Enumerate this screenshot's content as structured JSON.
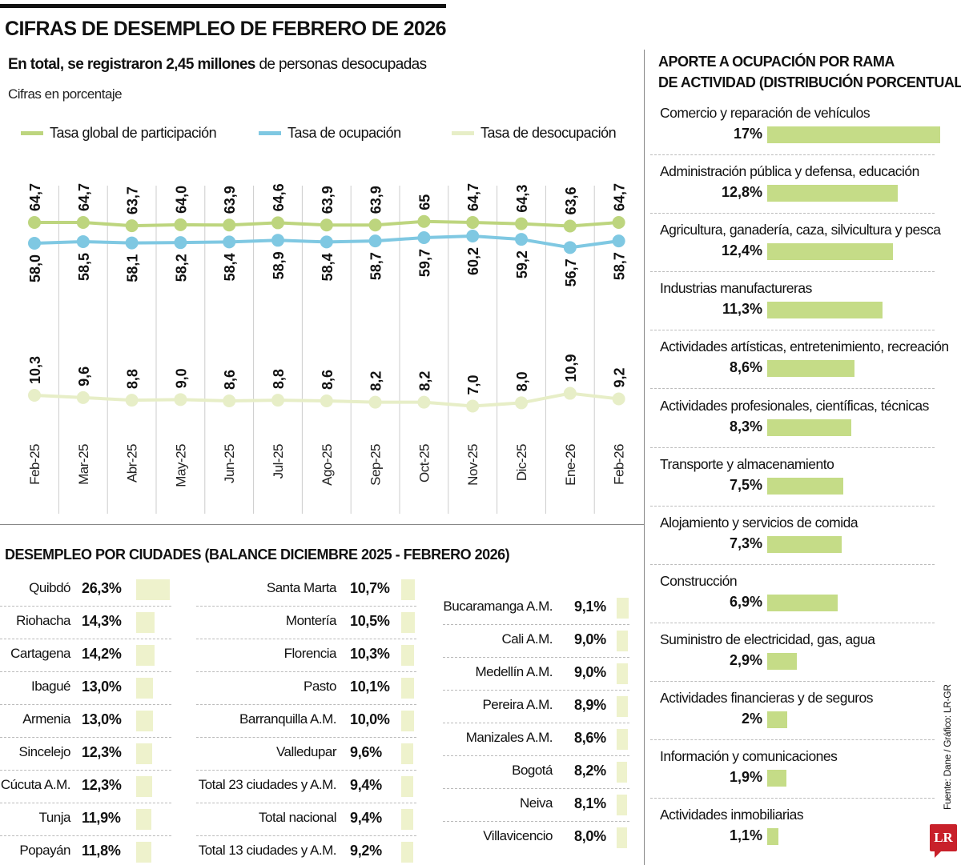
{
  "header": {
    "title": "CIFRAS DE DESEMPLEO DE FEBRERO DE 2026",
    "subtitle_bold": "En total, se registraron 2,45 millones",
    "subtitle_rest": " de personas desocupadas",
    "units": "Cifras en porcentaje"
  },
  "chart_data": {
    "type": "line",
    "categories": [
      "Feb-25",
      "Mar-25",
      "Abr-25",
      "May-25",
      "Jun-25",
      "Jul-25",
      "Ago-25",
      "Sep-25",
      "Oct-25",
      "Nov-25",
      "Dic-25",
      "Ene-26",
      "Feb-26"
    ],
    "series": [
      {
        "name": "Tasa global de participación",
        "color": "#bdd57e",
        "values": [
          64.7,
          64.7,
          63.7,
          64.0,
          63.9,
          64.6,
          63.9,
          63.9,
          65,
          64.7,
          64.3,
          63.6,
          64.7
        ],
        "labels": [
          "64,7",
          "64,7",
          "63,7",
          "64,0",
          "63,9",
          "64,6",
          "63,9",
          "63,9",
          "65",
          "64,7",
          "64,3",
          "63,6",
          "64,7"
        ]
      },
      {
        "name": "Tasa de ocupación",
        "color": "#7fc8e2",
        "values": [
          58.0,
          58.5,
          58.1,
          58.2,
          58.4,
          58.9,
          58.4,
          58.7,
          59.7,
          60.2,
          59.2,
          56.7,
          58.7
        ],
        "labels": [
          "58,0",
          "58,5",
          "58,1",
          "58,2",
          "58,4",
          "58,9",
          "58,4",
          "58,7",
          "59,7",
          "60,2",
          "59,2",
          "56,7",
          "58,7"
        ]
      },
      {
        "name": "Tasa de desocupación",
        "color": "#e7eec7",
        "values": [
          10.3,
          9.6,
          8.8,
          9.0,
          8.6,
          8.8,
          8.6,
          8.2,
          8.2,
          7.0,
          8.0,
          10.9,
          9.2
        ],
        "labels": [
          "10,3",
          "9,6",
          "8,8",
          "9,0",
          "8,6",
          "8,8",
          "8,6",
          "8,2",
          "8,2",
          "7,0",
          "8,0",
          "10,9",
          "9,2"
        ]
      }
    ],
    "legend": "top",
    "grid": "vertical separators"
  },
  "cities": {
    "title": "DESEMPLEO POR CIUDADES (BALANCE DICIEMBRE 2025 - FEBRERO 2026)",
    "bar_color": "#eef2cc",
    "columns": [
      [
        {
          "name": "Quibdó",
          "label": "26,3%",
          "value": 26.3
        },
        {
          "name": "Riohacha",
          "label": "14,3%",
          "value": 14.3
        },
        {
          "name": "Cartagena",
          "label": "14,2%",
          "value": 14.2
        },
        {
          "name": "Ibagué",
          "label": "13,0%",
          "value": 13.0
        },
        {
          "name": "Armenia",
          "label": "13,0%",
          "value": 13.0
        },
        {
          "name": "Sincelejo",
          "label": "12,3%",
          "value": 12.3
        },
        {
          "name": "Cúcuta A.M.",
          "label": "12,3%",
          "value": 12.3
        },
        {
          "name": "Tunja",
          "label": "11,9%",
          "value": 11.9
        },
        {
          "name": "Popayán",
          "label": "11,8%",
          "value": 11.8
        }
      ],
      [
        {
          "name": "Santa Marta",
          "label": "10,7%",
          "value": 10.7
        },
        {
          "name": "Montería",
          "label": "10,5%",
          "value": 10.5
        },
        {
          "name": "Florencia",
          "label": "10,3%",
          "value": 10.3
        },
        {
          "name": "Pasto",
          "label": "10,1%",
          "value": 10.1
        },
        {
          "name": "Barranquilla A.M.",
          "label": "10,0%",
          "value": 10.0
        },
        {
          "name": "Valledupar",
          "label": "9,6%",
          "value": 9.6
        },
        {
          "name": "Total 23 ciudades y A.M.",
          "label": "9,4%",
          "value": 9.4
        },
        {
          "name": "Total nacional",
          "label": "9,4%",
          "value": 9.4
        },
        {
          "name": "Total 13 ciudades y A.M.",
          "label": "9,2%",
          "value": 9.2
        }
      ],
      [
        {
          "name": "Bucaramanga A.M.",
          "label": "9,1%",
          "value": 9.1
        },
        {
          "name": "Cali A.M.",
          "label": "9,0%",
          "value": 9.0
        },
        {
          "name": "Medellín A.M.",
          "label": "9,0%",
          "value": 9.0
        },
        {
          "name": "Pereira A.M.",
          "label": "8,9%",
          "value": 8.9
        },
        {
          "name": "Manizales A.M.",
          "label": "8,6%",
          "value": 8.6
        },
        {
          "name": "Bogotá",
          "label": "8,2%",
          "value": 8.2
        },
        {
          "name": "Neiva",
          "label": "8,1%",
          "value": 8.1
        },
        {
          "name": "Villavicencio",
          "label": "8,0%",
          "value": 8.0
        }
      ]
    ]
  },
  "sectors": {
    "title_line1": "APORTE A OCUPACIÓN POR RAMA",
    "title_line2": "DE ACTIVIDAD (DISTRIBUCIÓN PORCENTUAL)",
    "bar_color": "#c5dc87",
    "items": [
      {
        "name": "Comercio y reparación de vehículos",
        "label": "17%",
        "value": 17
      },
      {
        "name": "Administración pública y defensa, educación",
        "label": "12,8%",
        "value": 12.8
      },
      {
        "name": "Agricultura, ganadería, caza, silvicultura y pesca",
        "label": "12,4%",
        "value": 12.4
      },
      {
        "name": "Industrias manufactureras",
        "label": "11,3%",
        "value": 11.3
      },
      {
        "name": "Actividades artísticas, entretenimiento, recreación",
        "label": "8,6%",
        "value": 8.6
      },
      {
        "name": "Actividades profesionales, científicas, técnicas",
        "label": "8,3%",
        "value": 8.3
      },
      {
        "name": "Transporte y almacenamiento",
        "label": "7,5%",
        "value": 7.5
      },
      {
        "name": "Alojamiento y servicios de comida",
        "label": "7,3%",
        "value": 7.3
      },
      {
        "name": "Construcción",
        "label": "6,9%",
        "value": 6.9
      },
      {
        "name": "Suministro de electricidad, gas, agua",
        "label": "2,9%",
        "value": 2.9
      },
      {
        "name": "Actividades financieras y de seguros",
        "label": "2%",
        "value": 2
      },
      {
        "name": "Información y comunicaciones",
        "label": "1,9%",
        "value": 1.9
      },
      {
        "name": "Actividades inmobiliarias",
        "label": "1,1%",
        "value": 1.1
      }
    ]
  },
  "footer": {
    "source": "Fuente: Dane / Gráfico: LR-GR",
    "logo": "LR"
  }
}
